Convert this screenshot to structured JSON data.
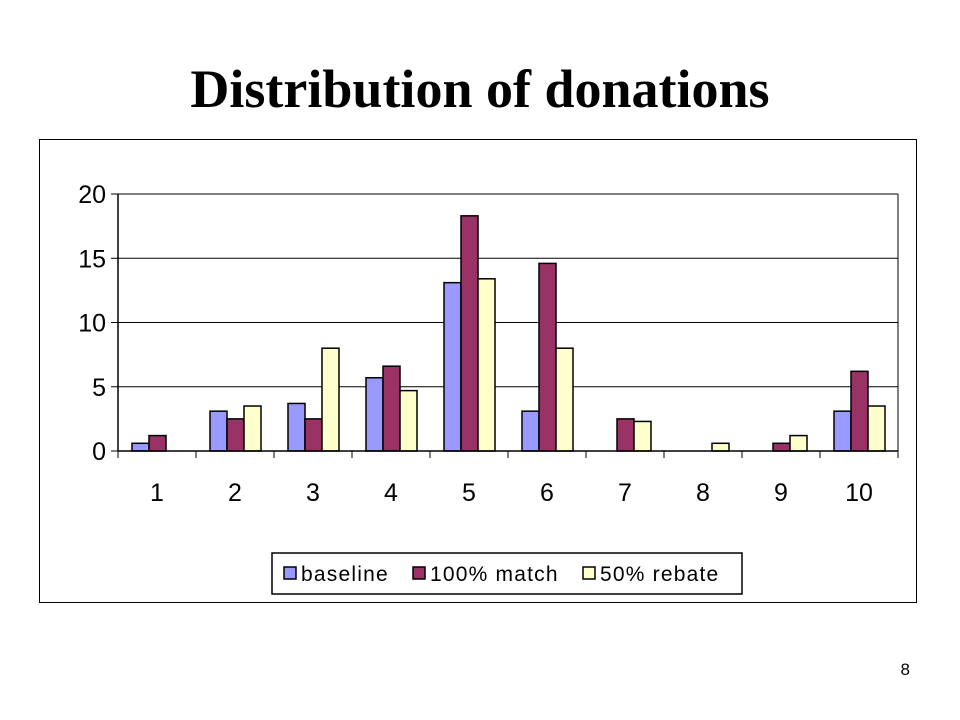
{
  "slide": {
    "title": "Distribution of donations",
    "page_number": "8"
  },
  "chart_data": {
    "type": "bar",
    "categories": [
      "1",
      "2",
      "3",
      "4",
      "5",
      "6",
      "7",
      "8",
      "9",
      "10"
    ],
    "series": [
      {
        "name": "baseline",
        "color": "#9999ff",
        "values": [
          0.6,
          3.1,
          3.7,
          5.7,
          13.1,
          3.1,
          0,
          0,
          0,
          3.1
        ]
      },
      {
        "name": "100% match",
        "color": "#993366",
        "values": [
          1.2,
          2.5,
          2.5,
          6.6,
          18.3,
          14.6,
          2.5,
          0,
          0.6,
          6.2
        ]
      },
      {
        "name": "50% rebate",
        "color": "#ffffcc",
        "values": [
          0,
          3.5,
          8.0,
          4.7,
          13.4,
          8.0,
          2.3,
          0.6,
          1.2,
          3.5
        ]
      }
    ],
    "y_ticks": [
      "0",
      "5",
      "10",
      "15",
      "20"
    ],
    "ylim": [
      0,
      20
    ],
    "grid": true,
    "legend_position": "bottom"
  }
}
